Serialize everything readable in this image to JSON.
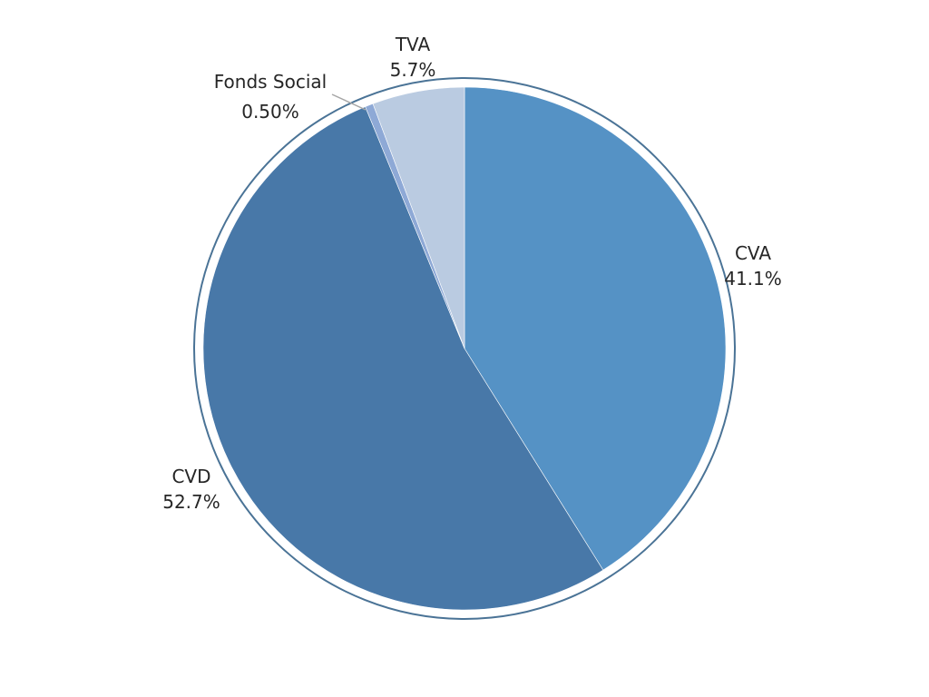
{
  "chart_data": {
    "type": "pie",
    "title": "",
    "start_angle_deg": 0,
    "direction": "clockwise",
    "slices": [
      {
        "label": "CVA",
        "value": 41.1,
        "value_label": "41.1%",
        "color": "#5592c5"
      },
      {
        "label": "CVD",
        "value": 52.7,
        "value_label": "52.7%",
        "color": "#4878a8"
      },
      {
        "label": "Fonds Social",
        "value": 0.5,
        "value_label": "0.50%",
        "color": "#8ea9d6"
      },
      {
        "label": "TVA",
        "value": 5.7,
        "value_label": "5.7%",
        "color": "#bacbe1"
      }
    ],
    "outline_color": "#4a7396",
    "leader_line_color": "#a6a6a6"
  }
}
